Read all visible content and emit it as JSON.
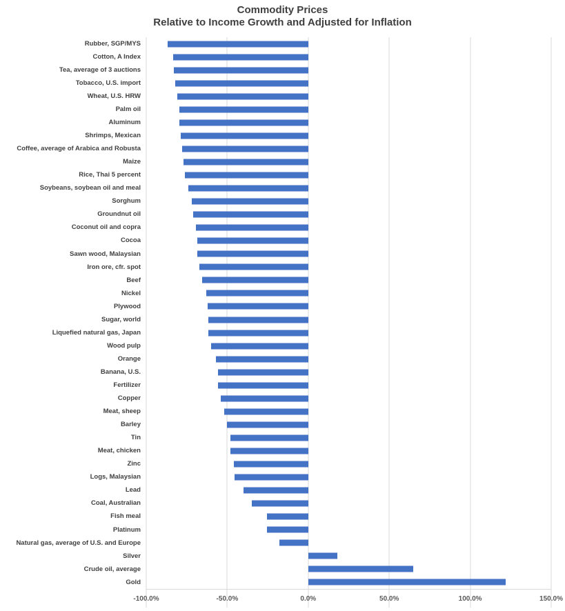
{
  "title": "Commodity Prices",
  "subtitle": "Relative to Income Growth and Adjusted for Inflation",
  "chart_data": {
    "type": "bar",
    "orientation": "horizontal",
    "title": "Commodity Prices",
    "subtitle": "Relative to Income Growth and Adjusted for Inflation",
    "xlabel": "",
    "ylabel": "",
    "unit": "%",
    "xlim": [
      -100,
      150
    ],
    "x_ticks": [
      -100,
      -50,
      0,
      50,
      100,
      150
    ],
    "x_tick_labels": [
      "-100.0%",
      "-50.0%",
      "0.0%",
      "50.0%",
      "100.0%",
      "150.0%"
    ],
    "grid": true,
    "legend": false,
    "bar_color": "#4472C4",
    "gridline_color": "#d9d9d9",
    "category_label_color": "#404040",
    "tick_label_color": "#595959",
    "categories": [
      "Rubber, SGP/MYS",
      "Cotton, A Index",
      "Tea, average of 3 auctions",
      "Tobacco, U.S. import",
      "Wheat, U.S. HRW",
      "Palm oil",
      "Aluminum",
      "Shrimps, Mexican",
      "Coffee, average of Arabica and Robusta",
      "Maize",
      "Rice, Thai 5 percent",
      "Soybeans, soybean oil and meal",
      "Sorghum",
      "Groundnut oil",
      "Coconut oil and copra",
      "Cocoa",
      "Sawn wood, Malaysian",
      "Iron ore, cfr. spot",
      "Beef",
      "Nickel",
      "Plywood",
      "Sugar, world",
      "Liquefied natural gas, Japan",
      "Wood pulp",
      "Orange",
      "Banana, U.S.",
      "Fertilizer",
      "Copper",
      "Meat, sheep",
      "Barley",
      "Tin",
      "Meat, chicken",
      "Zinc",
      "Logs, Malaysian",
      "Lead",
      "Coal, Australian",
      "Fish meal",
      "Platinum",
      "Natural gas, average of U.S. and Europe",
      "Silver",
      "Crude oil, average",
      "Gold"
    ],
    "values": [
      -87,
      -83.5,
      -83,
      -82,
      -81,
      -79.5,
      -79.5,
      -78.5,
      -78,
      -77,
      -76,
      -74,
      -72,
      -71,
      -69.5,
      -68.5,
      -68.5,
      -67,
      -65.5,
      -63,
      -62,
      -61.5,
      -61.5,
      -60,
      -57,
      -55.5,
      -55.5,
      -54,
      -52,
      -50,
      -48,
      -48,
      -46,
      -45.5,
      -40,
      -35,
      -25.5,
      -25.5,
      -18,
      18,
      65,
      122
    ]
  }
}
